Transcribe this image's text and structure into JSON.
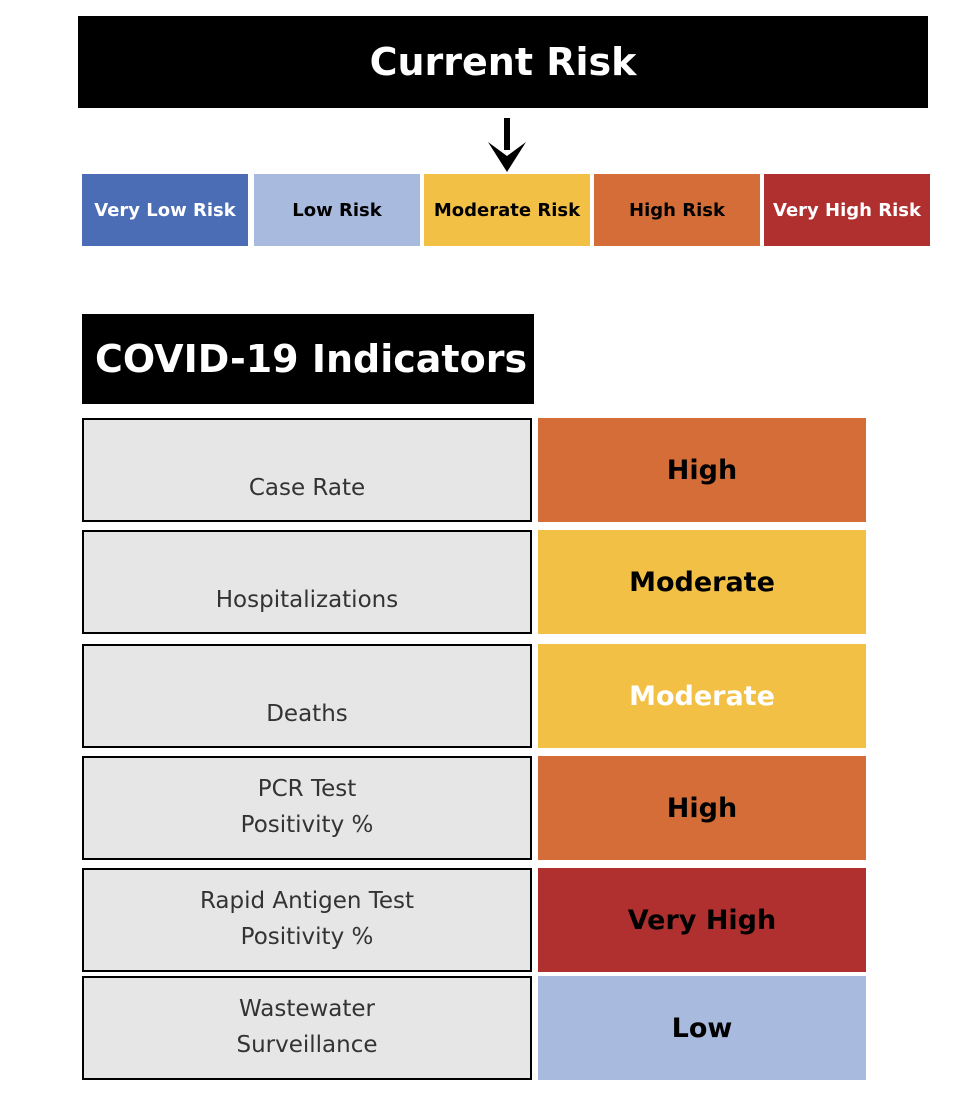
{
  "header": {
    "title": "Current Risk"
  },
  "risk_scale": {
    "current_index": 2,
    "levels": [
      {
        "label": "Very Low Risk",
        "color": "#4a6db5",
        "text_color": "#ffffff"
      },
      {
        "label": "Low Risk",
        "color": "#a9badf",
        "text_color": "#000000"
      },
      {
        "label": "Moderate Risk",
        "color": "#f2c045",
        "text_color": "#000000"
      },
      {
        "label": "High Risk",
        "color": "#d46d38",
        "text_color": "#000000"
      },
      {
        "label": "Very High Risk",
        "color": "#b03030",
        "text_color": "#ffffff"
      }
    ]
  },
  "indicators": {
    "title": "COVID-19 Indicators",
    "rows": [
      {
        "label_lines": [
          "Case Rate"
        ],
        "level": "High",
        "color": "#d46d38",
        "text_color": "#000000"
      },
      {
        "label_lines": [
          "Hospitalizations"
        ],
        "level": "Moderate",
        "color": "#f2c045",
        "text_color": "#000000"
      },
      {
        "label_lines": [
          "Deaths"
        ],
        "level": "Moderate",
        "color": "#f2c045",
        "text_color": "#ffffff"
      },
      {
        "label_lines": [
          "PCR Test",
          "Positivity %"
        ],
        "level": "High",
        "color": "#d46d38",
        "text_color": "#000000"
      },
      {
        "label_lines": [
          "Rapid Antigen Test",
          "Positivity %"
        ],
        "level": "Very High",
        "color": "#b03030",
        "text_color": "#000000"
      },
      {
        "label_lines": [
          "Wastewater",
          "Surveillance"
        ],
        "level": "Low",
        "color": "#a9badf",
        "text_color": "#000000"
      }
    ]
  }
}
